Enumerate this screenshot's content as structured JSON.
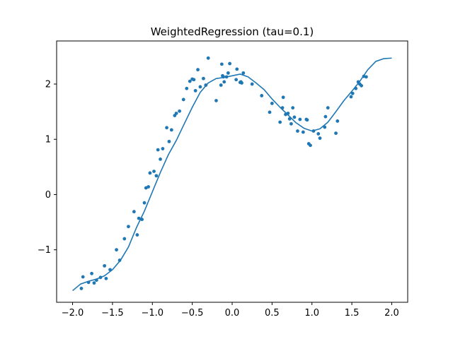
{
  "chart_data": {
    "type": "scatter",
    "title": "WeightedRegression (tau=0.1)",
    "xlabel": "",
    "ylabel": "",
    "xlim": [
      -2.2,
      2.2
    ],
    "ylim": [
      -1.95,
      2.78
    ],
    "grid": false,
    "legend": "none",
    "x_ticks": [
      -2.0,
      -1.5,
      -1.0,
      -0.5,
      0.0,
      0.5,
      1.0,
      1.5,
      2.0
    ],
    "x_tick_labels": [
      "−2.0",
      "−1.5",
      "−1.0",
      "−0.5",
      "0.0",
      "0.5",
      "1.0",
      "1.5",
      "2.0"
    ],
    "y_ticks": [
      -1,
      0,
      1,
      2
    ],
    "y_tick_labels": [
      "−1",
      "0",
      "1",
      "2"
    ],
    "color": "#1f77b4",
    "series": [
      {
        "kind": "scatter",
        "x": [
          -1.89,
          -1.87,
          -1.8,
          -1.76,
          -1.73,
          -1.7,
          -1.65,
          -1.6,
          -1.58,
          -1.53,
          -1.45,
          -1.41,
          -1.35,
          -1.3,
          -1.23,
          -1.19,
          -1.17,
          -1.13,
          -1.1,
          -1.08,
          -1.05,
          -1.03,
          -0.98,
          -0.95,
          -0.93,
          -0.9,
          -0.87,
          -0.82,
          -0.79,
          -0.76,
          -0.72,
          -0.7,
          -0.66,
          -0.61,
          -0.57,
          -0.53,
          -0.5,
          -0.48,
          -0.46,
          -0.43,
          -0.4,
          -0.36,
          -0.33,
          -0.3,
          -0.2,
          -0.14,
          -0.13,
          -0.12,
          -0.11,
          -0.1,
          -0.07,
          -0.05,
          -0.03,
          0.05,
          0.06,
          0.1,
          0.11,
          0.12,
          0.14,
          0.25,
          0.37,
          0.47,
          0.5,
          0.6,
          0.63,
          0.64,
          0.67,
          0.7,
          0.72,
          0.74,
          0.76,
          0.78,
          0.82,
          0.85,
          0.89,
          0.93,
          0.94,
          0.96,
          0.98,
          1.02,
          1.08,
          1.1,
          1.16,
          1.17,
          1.2,
          1.3,
          1.32,
          1.49,
          1.51,
          1.55,
          1.58,
          1.6,
          1.62,
          1.65,
          1.68
        ],
        "y": [
          -1.7,
          -1.49,
          -1.59,
          -1.43,
          -1.6,
          -1.55,
          -1.5,
          -1.29,
          -1.52,
          -1.36,
          -1.0,
          -1.19,
          -0.8,
          -0.58,
          -0.31,
          -0.73,
          -0.43,
          -0.45,
          -0.15,
          0.12,
          0.14,
          0.39,
          0.42,
          0.34,
          0.81,
          0.64,
          0.83,
          1.21,
          0.96,
          1.17,
          1.43,
          1.47,
          1.51,
          1.72,
          1.92,
          2.05,
          2.09,
          2.08,
          1.88,
          2.26,
          1.95,
          2.1,
          1.98,
          2.47,
          1.7,
          1.98,
          2.36,
          2.15,
          2.13,
          2.04,
          2.13,
          2.2,
          2.37,
          2.08,
          2.27,
          2.03,
          2.04,
          2.02,
          2.2,
          2.0,
          1.79,
          1.49,
          1.65,
          1.31,
          1.57,
          1.76,
          1.45,
          1.47,
          1.37,
          1.28,
          1.57,
          1.4,
          1.15,
          1.36,
          1.13,
          1.36,
          1.35,
          0.92,
          0.89,
          1.15,
          1.1,
          1.02,
          1.22,
          1.41,
          1.57,
          1.11,
          1.33,
          1.77,
          1.83,
          1.92,
          2.04,
          2.0,
          1.97,
          2.14,
          2.13
        ]
      },
      {
        "kind": "line",
        "x": [
          -2.0,
          -1.9,
          -1.8,
          -1.7,
          -1.6,
          -1.5,
          -1.4,
          -1.3,
          -1.2,
          -1.1,
          -1.0,
          -0.9,
          -0.8,
          -0.7,
          -0.6,
          -0.5,
          -0.4,
          -0.3,
          -0.2,
          -0.1,
          0.0,
          0.1,
          0.2,
          0.3,
          0.4,
          0.5,
          0.6,
          0.7,
          0.8,
          0.9,
          1.0,
          1.1,
          1.2,
          1.3,
          1.4,
          1.5,
          1.6,
          1.7,
          1.8,
          1.9,
          2.0
        ],
        "y": [
          -1.74,
          -1.62,
          -1.57,
          -1.53,
          -1.47,
          -1.36,
          -1.19,
          -0.95,
          -0.6,
          -0.3,
          0.05,
          0.4,
          0.72,
          0.98,
          1.28,
          1.58,
          1.85,
          2.02,
          2.1,
          2.12,
          2.15,
          2.18,
          2.13,
          2.02,
          1.9,
          1.73,
          1.58,
          1.44,
          1.3,
          1.2,
          1.15,
          1.19,
          1.31,
          1.5,
          1.7,
          1.87,
          2.05,
          2.26,
          2.41,
          2.46,
          2.47
        ]
      }
    ]
  }
}
